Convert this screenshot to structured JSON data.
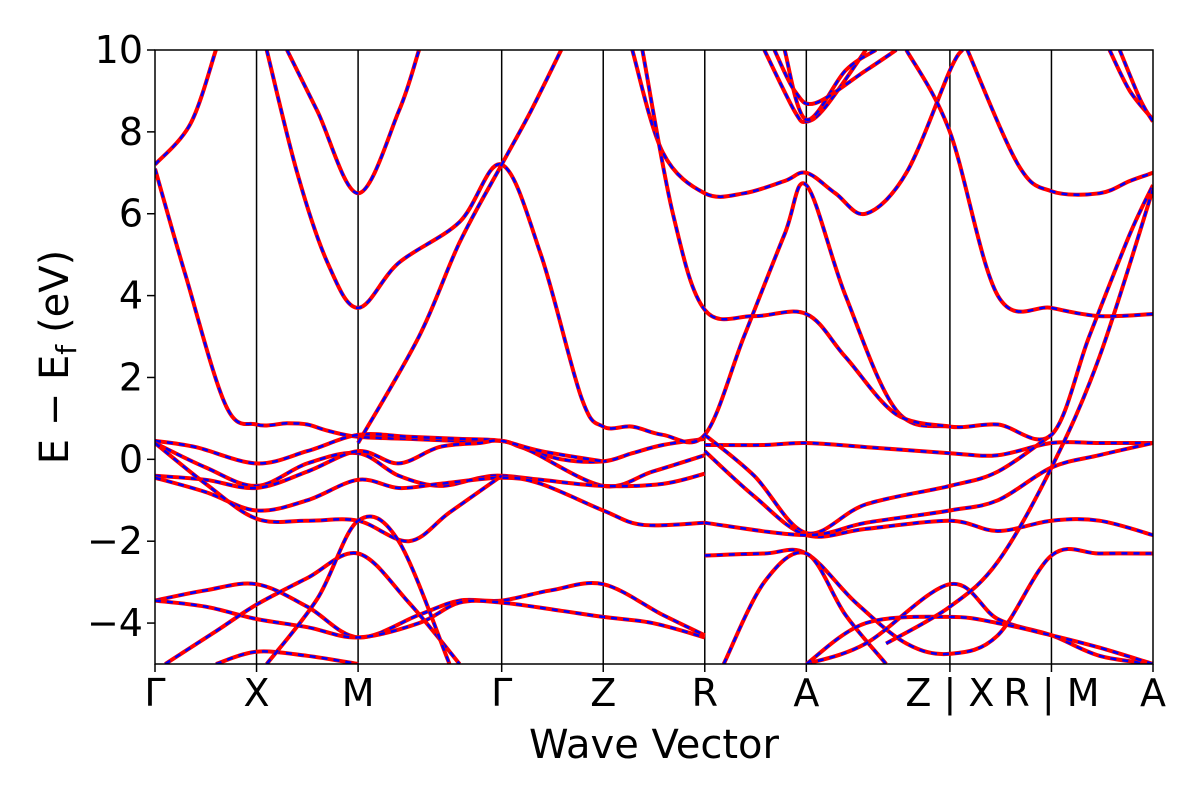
{
  "chart_data": {
    "type": "line",
    "title": "",
    "xlabel": "Wave Vector",
    "ylabel_main": "E − E",
    "ylabel_sub": "f",
    "ylabel_unit": "(eV)",
    "ylim": [
      -5,
      10
    ],
    "yticks": [
      -4,
      -2,
      0,
      2,
      4,
      6,
      8,
      10
    ],
    "ytick_labels": [
      "−4",
      "−2",
      "0",
      "2",
      "4",
      "6",
      "8",
      "10"
    ],
    "kpath": [
      0,
      1,
      2,
      3.414,
      4.414,
      5.414,
      6.414,
      7.828,
      8.828,
      9.828
    ],
    "kpath_labels": [
      "Γ",
      "X",
      "M",
      "Γ",
      "Z",
      "R",
      "A",
      "Z | X",
      "R | M",
      "A"
    ],
    "line_colors": {
      "band_solid": "#ff0000",
      "band_dashed": "#0000ff",
      "kpoint_line": "#000000"
    },
    "series": [
      {
        "values": [
          [
            0,
            7.2
          ],
          [
            0.35,
            8.2
          ],
          [
            0.6,
            10
          ]
        ]
      },
      {
        "values": [
          [
            0,
            7.1
          ],
          [
            0.3,
            4.5
          ],
          [
            0.7,
            1.3
          ],
          [
            1,
            0.85
          ],
          [
            1.3,
            0.88
          ],
          [
            1.5,
            0.85
          ],
          [
            1.7,
            0.7
          ],
          [
            2,
            0.55
          ],
          [
            2.5,
            0.5
          ],
          [
            3,
            0.45
          ],
          [
            3.414,
            0.45
          ],
          [
            3.6,
            0.3
          ],
          [
            4,
            0.0
          ],
          [
            4.414,
            -0.05
          ],
          [
            4.7,
            0.15
          ],
          [
            5.0,
            0.35
          ],
          [
            5.414,
            0.5
          ]
        ]
      },
      {
        "values": [
          [
            0,
            0.45
          ],
          [
            0.4,
            0.3
          ],
          [
            1,
            -0.1
          ],
          [
            1.5,
            0.2
          ],
          [
            2,
            0.6
          ],
          [
            2.5,
            0.55
          ],
          [
            3,
            0.5
          ],
          [
            3.414,
            0.45
          ],
          [
            3.7,
            0.2
          ],
          [
            4.414,
            -0.65
          ],
          [
            4.9,
            -0.3
          ],
          [
            5.414,
            0.1
          ]
        ]
      },
      {
        "values": [
          [
            0,
            0.4
          ],
          [
            0.5,
            -0.2
          ],
          [
            1,
            -0.65
          ],
          [
            1.5,
            -0.1
          ],
          [
            2,
            0.15
          ],
          [
            2.4,
            -0.4
          ],
          [
            2.8,
            -0.65
          ],
          [
            3.2,
            -0.45
          ],
          [
            3.414,
            -0.4
          ],
          [
            3.8,
            -0.5
          ],
          [
            4.414,
            -0.65
          ],
          [
            5,
            -0.6
          ],
          [
            5.414,
            -0.35
          ]
        ]
      },
      {
        "values": [
          [
            0,
            -0.4
          ],
          [
            0.5,
            -0.5
          ],
          [
            1,
            -0.7
          ],
          [
            1.5,
            -0.3
          ],
          [
            2,
            0.2
          ],
          [
            2.4,
            -0.1
          ],
          [
            2.8,
            0.3
          ],
          [
            3.2,
            0.4
          ],
          [
            3.414,
            0.45
          ],
          [
            3.8,
            0.2
          ],
          [
            4.414,
            -0.05
          ]
        ]
      },
      {
        "values": [
          [
            0,
            -0.45
          ],
          [
            0.5,
            -0.8
          ],
          [
            1,
            -1.25
          ],
          [
            1.5,
            -1.0
          ],
          [
            2,
            -0.5
          ],
          [
            2.4,
            -0.7
          ],
          [
            2.8,
            -0.6
          ],
          [
            3.414,
            -0.45
          ],
          [
            3.8,
            -0.6
          ],
          [
            4.414,
            -1.25
          ],
          [
            4.8,
            -1.6
          ],
          [
            5.414,
            -1.55
          ]
        ]
      },
      {
        "values": [
          [
            0,
            0.4
          ],
          [
            0.5,
            -0.6
          ],
          [
            1,
            -1.45
          ],
          [
            1.5,
            -1.5
          ],
          [
            2,
            -1.5
          ],
          [
            2.5,
            -2.0
          ],
          [
            2.9,
            -1.3
          ],
          [
            3.414,
            -0.4
          ]
        ]
      },
      {
        "values": [
          [
            0,
            -3.45
          ],
          [
            0.5,
            -3.2
          ],
          [
            1,
            -3.05
          ],
          [
            1.5,
            -3.6
          ],
          [
            2,
            -4.35
          ],
          [
            2.6,
            -3.8
          ],
          [
            3.0,
            -3.45
          ],
          [
            3.414,
            -3.45
          ],
          [
            3.9,
            -3.2
          ],
          [
            4.414,
            -3.05
          ],
          [
            5.0,
            -3.8
          ],
          [
            5.414,
            -4.3
          ]
        ]
      },
      {
        "values": [
          [
            0,
            -3.45
          ],
          [
            0.5,
            -3.6
          ],
          [
            1,
            -3.9
          ],
          [
            1.5,
            -4.1
          ],
          [
            2,
            -4.35
          ],
          [
            2.6,
            -4.0
          ],
          [
            3.0,
            -3.5
          ],
          [
            3.414,
            -3.5
          ],
          [
            4,
            -3.7
          ],
          [
            4.414,
            -3.85
          ],
          [
            4.9,
            -4.0
          ],
          [
            5.414,
            -4.35
          ]
        ]
      },
      {
        "values": [
          [
            0.1,
            -5
          ],
          [
            0.6,
            -4.2
          ],
          [
            1,
            -3.55
          ],
          [
            1.5,
            -2.9
          ],
          [
            2,
            -2.3
          ],
          [
            2.5,
            -3.5
          ],
          [
            3,
            -5
          ]
        ]
      },
      {
        "values": [
          [
            0.6,
            -5
          ],
          [
            1,
            -4.7
          ],
          [
            1.5,
            -4.8
          ],
          [
            2,
            -5
          ]
        ]
      },
      {
        "values": [
          [
            1.1,
            -5
          ],
          [
            1.6,
            -3.4
          ],
          [
            2,
            -1.5
          ],
          [
            2.4,
            -2.0
          ],
          [
            2.9,
            -5
          ]
        ]
      },
      {
        "values": [
          [
            1.3,
            10
          ],
          [
            1.6,
            8.5
          ],
          [
            2,
            6.5
          ],
          [
            2.4,
            8.5
          ],
          [
            2.6,
            10
          ]
        ]
      },
      {
        "values": [
          [
            1.1,
            10
          ],
          [
            1.4,
            7.0
          ],
          [
            1.7,
            4.8
          ],
          [
            2,
            3.7
          ],
          [
            2.4,
            4.8
          ],
          [
            3,
            5.8
          ],
          [
            3.414,
            7.2
          ],
          [
            3.8,
            5.0
          ],
          [
            4.2,
            1.5
          ],
          [
            4.414,
            0.8
          ],
          [
            4.7,
            0.8
          ],
          [
            5.0,
            0.6
          ],
          [
            5.414,
            0.6
          ],
          [
            5.8,
            3.0
          ],
          [
            6.2,
            5.5
          ],
          [
            6.414,
            6.7
          ],
          [
            6.8,
            4.0
          ],
          [
            7.3,
            1.2
          ],
          [
            7.828,
            0.8
          ],
          [
            8.3,
            0.85
          ],
          [
            8.828,
            0.6
          ],
          [
            9.2,
            3.0
          ],
          [
            9.6,
            5.5
          ],
          [
            9.828,
            6.7
          ]
        ]
      },
      {
        "values": [
          [
            2,
            0.4
          ],
          [
            2.6,
            3.0
          ],
          [
            3.0,
            5.3
          ],
          [
            3.414,
            7.2
          ],
          [
            3.7,
            8.5
          ],
          [
            4.0,
            10
          ]
        ]
      },
      {
        "values": [
          [
            4.7,
            10
          ],
          [
            5.0,
            7.5
          ],
          [
            5.414,
            6.5
          ],
          [
            5.8,
            6.5
          ],
          [
            6.2,
            6.8
          ],
          [
            6.414,
            7.0
          ],
          [
            6.7,
            6.5
          ],
          [
            7.0,
            6.0
          ],
          [
            7.4,
            7.0
          ],
          [
            7.828,
            9.5
          ],
          [
            7.95,
            10
          ]
        ]
      },
      {
        "values": [
          [
            4.8,
            10
          ],
          [
            5.1,
            6.0
          ],
          [
            5.414,
            3.65
          ],
          [
            5.9,
            3.5
          ],
          [
            6.414,
            3.55
          ],
          [
            6.8,
            2.5
          ],
          [
            7.3,
            1.1
          ],
          [
            7.828,
            0.8
          ]
        ]
      },
      {
        "values": [
          [
            5.414,
            0.35
          ],
          [
            6.0,
            0.35
          ],
          [
            6.414,
            0.4
          ],
          [
            7.0,
            0.3
          ],
          [
            7.828,
            0.15
          ],
          [
            8.3,
            0.1
          ],
          [
            8.828,
            0.4
          ],
          [
            9.3,
            0.4
          ],
          [
            9.828,
            0.4
          ]
        ]
      },
      {
        "values": [
          [
            5.414,
            0.6
          ],
          [
            5.9,
            -0.4
          ],
          [
            6.414,
            -1.8
          ],
          [
            7.0,
            -1.1
          ],
          [
            7.828,
            -0.65
          ],
          [
            8.3,
            -0.3
          ],
          [
            8.828,
            0.6
          ]
        ]
      },
      {
        "values": [
          [
            5.414,
            0.2
          ],
          [
            5.9,
            -0.9
          ],
          [
            6.414,
            -1.85
          ],
          [
            7.0,
            -1.7
          ],
          [
            7.828,
            -1.5
          ],
          [
            8.3,
            -1.75
          ],
          [
            8.828,
            -1.5
          ],
          [
            9.3,
            -1.5
          ],
          [
            9.828,
            -1.85
          ]
        ]
      },
      {
        "values": [
          [
            5.414,
            -1.55
          ],
          [
            6.414,
            -1.85
          ],
          [
            7.0,
            -1.55
          ],
          [
            7.828,
            -1.25
          ],
          [
            8.3,
            -1.0
          ],
          [
            8.828,
            -0.2
          ],
          [
            9.3,
            0.1
          ],
          [
            9.828,
            0.4
          ]
        ]
      },
      {
        "values": [
          [
            5.414,
            -2.35
          ],
          [
            6.0,
            -2.3
          ],
          [
            6.414,
            -2.3
          ],
          [
            6.9,
            -3.5
          ],
          [
            7.4,
            -4.5
          ],
          [
            7.828,
            -4.75
          ],
          [
            8.3,
            -4.3
          ],
          [
            8.828,
            -2.35
          ],
          [
            9.3,
            -2.3
          ],
          [
            9.828,
            -2.3
          ]
        ]
      },
      {
        "values": [
          [
            5.6,
            -5
          ],
          [
            6.0,
            -3.0
          ],
          [
            6.414,
            -2.3
          ],
          [
            6.8,
            -3.8
          ],
          [
            7.2,
            -5
          ]
        ]
      },
      {
        "values": [
          [
            6.414,
            -5.0
          ],
          [
            7.0,
            -4.5
          ],
          [
            7.828,
            -3.05
          ],
          [
            8.3,
            -3.9
          ],
          [
            8.828,
            -4.3
          ],
          [
            9.3,
            -4.8
          ],
          [
            9.828,
            -5.0
          ]
        ]
      },
      {
        "values": [
          [
            6.414,
            -5.0
          ],
          [
            7.0,
            -4.0
          ],
          [
            7.828,
            -3.85
          ],
          [
            8.3,
            -4.0
          ],
          [
            8.828,
            -4.3
          ],
          [
            9.3,
            -4.6
          ],
          [
            9.828,
            -5.0
          ]
        ]
      },
      {
        "values": [
          [
            7.2,
            -4.5
          ],
          [
            7.828,
            -3.6
          ],
          [
            8.3,
            -2.5
          ],
          [
            8.828,
            -0.2
          ],
          [
            9.3,
            2.5
          ],
          [
            9.828,
            6.6
          ]
        ]
      },
      {
        "values": [
          [
            6.0,
            10
          ],
          [
            6.3,
            8.5
          ],
          [
            6.414,
            8.25
          ],
          [
            6.6,
            8.6
          ],
          [
            7.0,
            10
          ]
        ]
      },
      {
        "values": [
          [
            6.2,
            10
          ],
          [
            6.414,
            8.3
          ],
          [
            6.8,
            9.5
          ],
          [
            7.1,
            10
          ]
        ]
      },
      {
        "values": [
          [
            6.1,
            10
          ],
          [
            6.3,
            9.0
          ],
          [
            6.5,
            8.7
          ],
          [
            7.0,
            9.5
          ],
          [
            7.3,
            10
          ]
        ]
      },
      {
        "values": [
          [
            7.4,
            10
          ],
          [
            7.828,
            8.0
          ],
          [
            8.3,
            4.0
          ],
          [
            8.828,
            3.7
          ],
          [
            9.3,
            3.5
          ],
          [
            9.828,
            3.55
          ]
        ]
      },
      {
        "values": [
          [
            8.0,
            10
          ],
          [
            8.5,
            7.2
          ],
          [
            8.828,
            6.55
          ],
          [
            9.3,
            6.5
          ],
          [
            9.6,
            6.8
          ],
          [
            9.828,
            7.0
          ]
        ]
      },
      {
        "values": [
          [
            9.4,
            10
          ],
          [
            9.6,
            9.0
          ],
          [
            9.828,
            8.3
          ]
        ]
      },
      {
        "values": [
          [
            9.5,
            10
          ],
          [
            9.7,
            8.8
          ],
          [
            9.828,
            8.25
          ]
        ]
      }
    ]
  }
}
